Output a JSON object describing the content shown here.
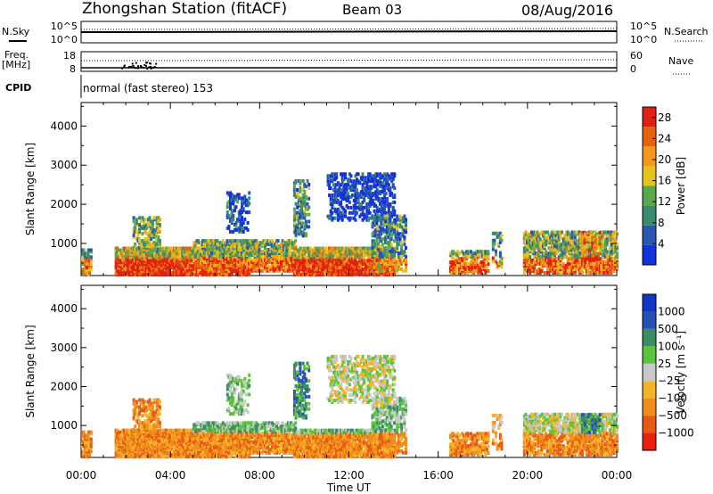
{
  "header": {
    "station": "Zhongshan Station (fitACF)",
    "beam": "Beam 03",
    "date": "08/Aug/2016"
  },
  "strip": {
    "nsky_label": "N.Sky",
    "nsearch_label": "N.Search",
    "nsky_ticks": [
      "10^5",
      "10^0"
    ],
    "nsearch_ticks": [
      "10^5",
      "10^0"
    ],
    "freq_label": "Freq.",
    "freq_unit": "[MHz]",
    "freq_ticks": [
      "18",
      "8"
    ],
    "nave_label": "Nave",
    "nave_ticks": [
      "60",
      "0"
    ],
    "cpid_label": "CPID",
    "cpid_text": "normal (fast stereo) 153"
  },
  "x_axis": {
    "label": "Time UT",
    "ticks": [
      "00:00",
      "04:00",
      "08:00",
      "12:00",
      "16:00",
      "20:00",
      "00:00"
    ]
  },
  "colors": {
    "power": [
      "#1432dc",
      "#2a55b0",
      "#3a8a70",
      "#5aa84e",
      "#e6c21e",
      "#f39a1a",
      "#e8620e",
      "#e22010"
    ],
    "velocity": [
      "#e8200c",
      "#e85a14",
      "#f08c1c",
      "#f5b428",
      "#c8c8c8",
      "#5ac43c",
      "#3c8c64",
      "#2850b4",
      "#1434c8"
    ]
  },
  "chart_data": [
    {
      "type": "heatmap",
      "ylabel": "Slant Range [km]",
      "xlabel": "",
      "x_ticks": [
        "00:00",
        "04:00",
        "08:00",
        "12:00",
        "16:00",
        "20:00",
        "00:00"
      ],
      "y_ticks": [
        1000,
        2000,
        3000,
        4000
      ],
      "ylim": [
        180,
        4600
      ],
      "xlim_hours": [
        0,
        24
      ],
      "colorbar": {
        "label": "Power [dB]",
        "ticks": [
          4,
          8,
          12,
          16,
          20,
          24,
          28
        ],
        "range": [
          0,
          30
        ]
      }
    },
    {
      "type": "heatmap",
      "ylabel": "Slant Range [km]",
      "xlabel": "Time UT",
      "x_ticks": [
        "00:00",
        "04:00",
        "08:00",
        "12:00",
        "16:00",
        "20:00",
        "00:00"
      ],
      "y_ticks": [
        1000,
        2000,
        3000,
        4000
      ],
      "ylim": [
        180,
        4600
      ],
      "xlim_hours": [
        0,
        24
      ],
      "colorbar": {
        "label": "Velocity [m s⁻¹]",
        "ticks": [
          "1000",
          "500",
          "100",
          "25",
          "−25",
          "−100",
          "−500",
          "−1000"
        ]
      }
    }
  ]
}
